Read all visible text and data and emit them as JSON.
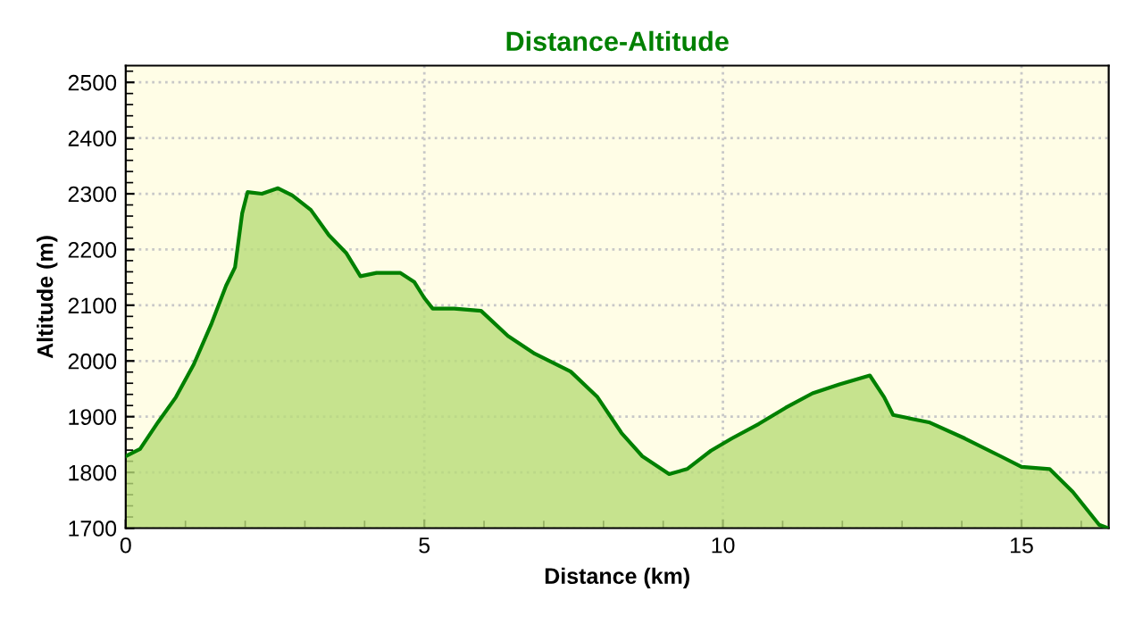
{
  "chart_data": {
    "type": "area",
    "title": "Distance-Altitude",
    "xlabel": "Distance (km)",
    "ylabel": "Altitude (m)",
    "xlim": [
      0,
      16.46
    ],
    "ylim": [
      1700,
      2530
    ],
    "xticks": [
      0,
      5,
      10,
      15
    ],
    "yticks": [
      1700,
      1800,
      1900,
      2000,
      2100,
      2200,
      2300,
      2400,
      2500
    ],
    "grid": true,
    "series": [
      {
        "color": "#008000",
        "x": [
          0,
          0.24,
          0.54,
          0.84,
          1.14,
          1.44,
          1.68,
          1.83,
          1.95,
          2.04,
          2.28,
          2.55,
          2.79,
          3.1,
          3.4,
          3.69,
          3.93,
          4.2,
          4.6,
          4.83,
          5.0,
          5.14,
          5.5,
          5.95,
          6.4,
          6.85,
          7.45,
          7.9,
          8.3,
          8.65,
          9.1,
          9.4,
          9.8,
          10.15,
          10.6,
          11.05,
          11.5,
          11.95,
          12.46,
          12.7,
          12.85,
          13.45,
          14.05,
          14.65,
          15.0,
          15.47,
          15.86,
          16.3,
          16.45
        ],
        "values": [
          1829,
          1842,
          1890,
          1935,
          1994,
          2068,
          2135,
          2168,
          2265,
          2303,
          2300,
          2310,
          2297,
          2271,
          2226,
          2194,
          2152,
          2158,
          2158,
          2142,
          2113,
          2094,
          2094,
          2090,
          2045,
          2013,
          1981,
          1935,
          1871,
          1829,
          1797,
          1806,
          1839,
          1861,
          1887,
          1916,
          1942,
          1958,
          1974,
          1935,
          1903,
          1890,
          1861,
          1829,
          1810,
          1806,
          1765,
          1706,
          1700
        ]
      }
    ]
  }
}
